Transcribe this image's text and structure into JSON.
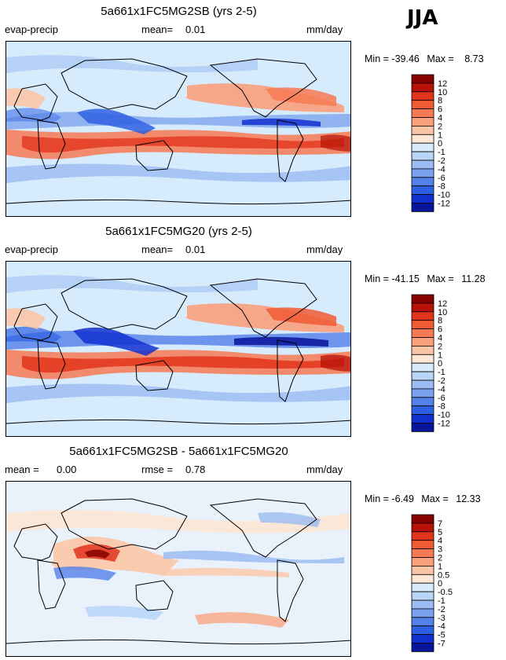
{
  "season": "JJA",
  "colors": {
    "positive": [
      "#fde6d4",
      "#fcc6a6",
      "#fba07c",
      "#f77a54",
      "#f05a34",
      "#e2341a",
      "#b81208",
      "#860000"
    ],
    "negative": [
      "#d9ebfb",
      "#b9d6f8",
      "#9bbcf3",
      "#7ba0ee",
      "#5480ea",
      "#2e5fe2",
      "#1230d0",
      "#08149a"
    ],
    "coast": "#000000"
  },
  "panels": [
    {
      "title": "5a661x1FC5MG2SB (yrs 2-5)",
      "left_label": "evap-precip",
      "stat_label": "mean=",
      "stat_value": "0.01",
      "units": "mm/day",
      "min_label": "Min =",
      "min_value": "-39.46",
      "max_label": "Max =",
      "max_value": "8.73",
      "levels": [
        "12",
        "10",
        "8",
        "6",
        "4",
        "2",
        "1",
        "0",
        "-1",
        "-2",
        "-4",
        "-6",
        "-8",
        "-10",
        "-12"
      ]
    },
    {
      "title": "5a661x1FC5MG20 (yrs 2-5)",
      "left_label": "evap-precip",
      "stat_label": "mean=",
      "stat_value": "0.01",
      "units": "mm/day",
      "min_label": "Min =",
      "min_value": "-41.15",
      "max_label": "Max =",
      "max_value": "11.28",
      "levels": [
        "12",
        "10",
        "8",
        "6",
        "4",
        "2",
        "1",
        "0",
        "-1",
        "-2",
        "-4",
        "-6",
        "-8",
        "-10",
        "-12"
      ]
    },
    {
      "title": "5a661x1FC5MG2SB - 5a661x1FC5MG20",
      "left_label": "mean =",
      "left_value": "0.00",
      "stat_label": "rmse =",
      "stat_value": "0.78",
      "units": "mm/day",
      "min_label": "Min =",
      "min_value": "-6.49",
      "max_label": "Max =",
      "max_value": "12.33",
      "levels": [
        "7",
        "5",
        "4",
        "3",
        "2",
        "1",
        "0.5",
        "0",
        "-0.5",
        "-1",
        "-2",
        "-3",
        "-4",
        "-5",
        "-7"
      ]
    }
  ]
}
